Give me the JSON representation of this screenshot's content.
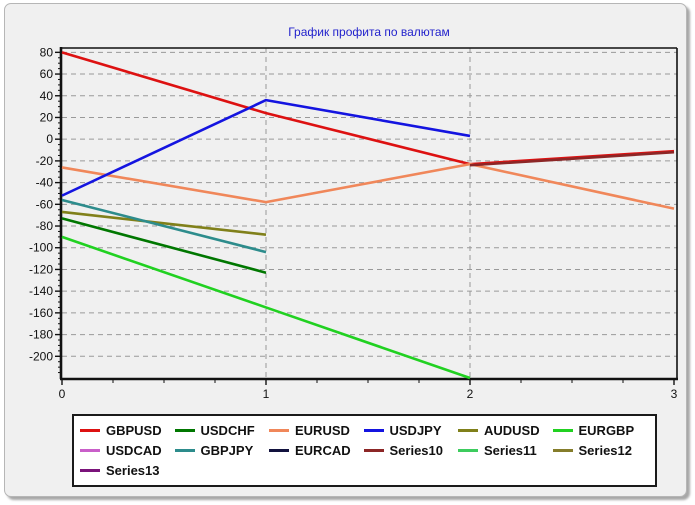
{
  "window": {
    "background": "#f0f0f0",
    "border_color": "#b6b6b6"
  },
  "chart_data": {
    "type": "line",
    "title": "График профита по валютам",
    "title_color": "#2222cc",
    "xlabel": "",
    "ylabel": "",
    "xlim": [
      0,
      3
    ],
    "ylim": [
      -220,
      84
    ],
    "x_ticks": [
      0,
      1,
      2,
      3
    ],
    "y_ticks": [
      80,
      60,
      40,
      20,
      0,
      -20,
      -40,
      -60,
      -80,
      -100,
      -120,
      -140,
      -160,
      -180,
      -200
    ],
    "grid": "dashed",
    "grid_color": "#999999",
    "axis_color": "#111111",
    "legend_position": "bottom",
    "series": [
      {
        "name": "GBPUSD",
        "color": "#dd1111",
        "points": [
          [
            0,
            80
          ],
          [
            1,
            24
          ],
          [
            2,
            -23
          ],
          [
            3,
            -11
          ]
        ]
      },
      {
        "name": "USDCHF",
        "color": "#007700",
        "points": [
          [
            0,
            -73
          ],
          [
            1,
            -123
          ]
        ]
      },
      {
        "name": "EURUSD",
        "color": "#f0875a",
        "points": [
          [
            0,
            -26
          ],
          [
            1,
            -58
          ],
          [
            2,
            -23
          ],
          [
            3,
            -64
          ]
        ]
      },
      {
        "name": "USDJPY",
        "color": "#1414e0",
        "points": [
          [
            0,
            -52
          ],
          [
            1,
            36
          ],
          [
            2,
            3
          ]
        ]
      },
      {
        "name": "AUDUSD",
        "color": "#80801a",
        "points": [
          [
            0,
            -67
          ],
          [
            1,
            -88
          ]
        ]
      },
      {
        "name": "EURGBP",
        "color": "#21d121",
        "points": [
          [
            0,
            -90
          ],
          [
            1,
            -155
          ],
          [
            2,
            -220
          ]
        ]
      },
      {
        "name": "USDCAD",
        "color": "#c95fc9",
        "points": []
      },
      {
        "name": "GBPJPY",
        "color": "#2d8c8c",
        "points": [
          [
            0,
            -56
          ],
          [
            1,
            -104
          ]
        ]
      },
      {
        "name": "EURCAD",
        "color": "#12123e",
        "points": []
      },
      {
        "name": "Series10",
        "color": "#8c2626",
        "points": [
          [
            2,
            -24
          ],
          [
            3,
            -12
          ]
        ]
      },
      {
        "name": "Series11",
        "color": "#3dcc5e",
        "points": []
      },
      {
        "name": "Series12",
        "color": "#857d2b",
        "points": []
      },
      {
        "name": "Series13",
        "color": "#7a137a",
        "points": []
      }
    ]
  }
}
